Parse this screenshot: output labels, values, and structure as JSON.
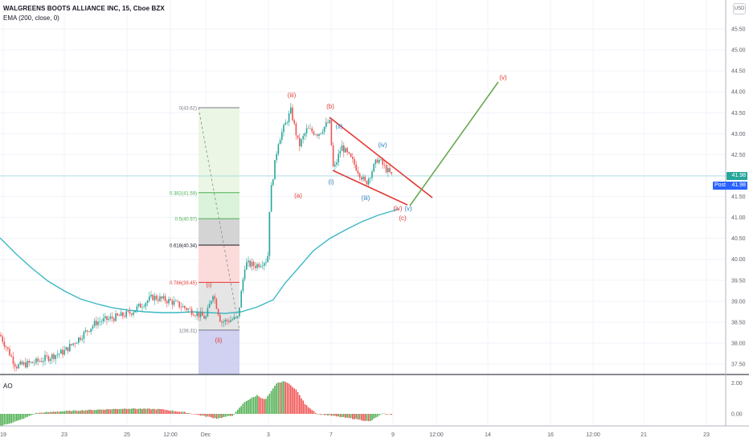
{
  "header": {
    "title": "WALGREENS BOOTS ALLIANCE INC, 15, Cboe BZX",
    "indicator": "EMA (200, close, 0)",
    "currency": "USD"
  },
  "price_tags": {
    "last": "41.98",
    "post_label": "Post",
    "post_value": "41.98"
  },
  "subpane_label": "AO",
  "colors": {
    "up": "#26a69a",
    "down": "#ef5350",
    "ema": "#3cb8c4",
    "wave_blue": "#2c7fbd",
    "wave_red": "#e53935",
    "projection": "#6aa84f",
    "ao_up": "#4caf50",
    "ao_down": "#f05050"
  },
  "chart_data": {
    "type": "candlestick",
    "price_axis": {
      "ylim": [
        37.25,
        45.9
      ],
      "ticks": [
        "37.50",
        "38.00",
        "38.50",
        "39.00",
        "39.50",
        "40.00",
        "40.50",
        "41.00",
        "41.50",
        "42.00",
        "42.50",
        "43.00",
        "43.50",
        "44.00",
        "44.50",
        "45.00",
        "45.50"
      ]
    },
    "time_axis": {
      "ticks": [
        "19",
        "23",
        "25",
        "12:00",
        "Dec",
        "3",
        "7",
        "9",
        "12:00",
        "14",
        "16",
        "12:00",
        "21",
        "23"
      ]
    },
    "series": [
      {
        "name": "EMA (200, close, 0)",
        "type": "line",
        "points": [
          [
            "19",
            40.5
          ],
          [
            "23",
            39.6
          ],
          [
            "25",
            39.0
          ],
          [
            "12:00",
            38.9
          ],
          [
            "Dec",
            38.85
          ],
          [
            "3",
            39.1
          ],
          [
            "7",
            40.3
          ],
          [
            "8",
            40.9
          ],
          [
            "9",
            41.3
          ]
        ]
      },
      {
        "name": "price",
        "type": "candlestick-path",
        "points": [
          [
            "19",
            38.2
          ],
          [
            "23",
            37.6
          ],
          [
            "25",
            38.4
          ],
          [
            "26",
            39.0
          ],
          [
            "12:00",
            39.1
          ],
          [
            "29",
            38.9
          ],
          [
            "Dec",
            38.5
          ],
          [
            "1",
            39.1
          ],
          [
            "2",
            40.0
          ],
          [
            "3",
            42.3
          ],
          [
            "3.5",
            43.6
          ],
          [
            "4",
            42.9
          ],
          [
            "5",
            43.4
          ],
          [
            "7",
            42.0
          ],
          [
            "7.5",
            42.8
          ],
          [
            "8",
            42.1
          ],
          [
            "8.5",
            42.5
          ],
          [
            "9",
            41.98
          ]
        ]
      }
    ],
    "fibonacci": {
      "levels": [
        {
          "label": "0(43.62)",
          "value": 43.62
        },
        {
          "label": "0.382(41.59)",
          "value": 41.59
        },
        {
          "label": "0.5(40.97)",
          "value": 40.97
        },
        {
          "label": "0.618(40.34)",
          "value": 40.34
        },
        {
          "label": "0.786(39.45)",
          "value": 39.45
        },
        {
          "label": "1(38.31)",
          "value": 38.31
        }
      ]
    },
    "wave_labels": [
      {
        "text": "(iii)",
        "color": "red",
        "value": 43.9
      },
      {
        "text": "(b)",
        "color": "red",
        "value": 43.6
      },
      {
        "text": "(ii)",
        "color": "blue",
        "value": 43.2
      },
      {
        "text": "(iv)",
        "color": "blue",
        "value": 42.6
      },
      {
        "text": "(i)",
        "color": "blue",
        "value": 41.8
      },
      {
        "text": "(a)",
        "color": "red",
        "value": 41.5
      },
      {
        "text": "(iii)",
        "color": "blue",
        "value": 41.2
      },
      {
        "text": "(iv)",
        "color": "red",
        "value": 41.2
      },
      {
        "text": "(v)",
        "color": "blue",
        "value": 41.2
      },
      {
        "text": "(c)",
        "color": "red",
        "value": 40.95
      },
      {
        "text": "(i)",
        "color": "red",
        "value": 39.4
      },
      {
        "text": "(ii)",
        "color": "red",
        "value": 37.85
      },
      {
        "text": "(v)",
        "color": "red",
        "value": 44.8
      }
    ],
    "ao": {
      "ticks": [
        "2.00",
        "0.00"
      ],
      "ylim": [
        -1.0,
        2.4
      ]
    }
  }
}
